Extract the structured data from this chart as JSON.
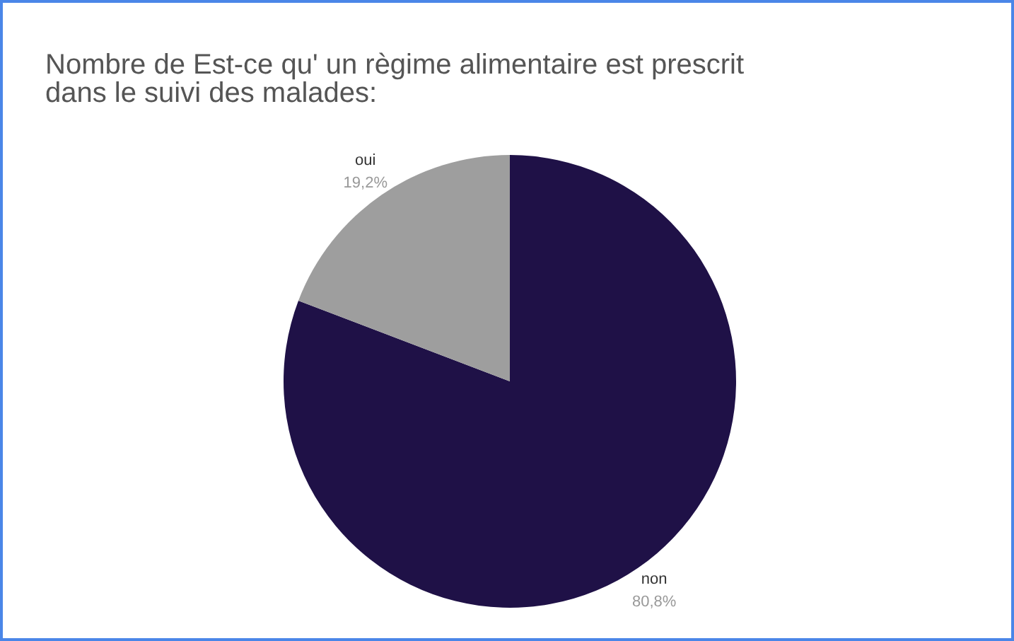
{
  "chart_data": {
    "type": "pie",
    "title": "Nombre de Est-ce qu' un règime alimentaire est prescrit dans le suivi des malades:",
    "categories": [
      "non",
      "oui"
    ],
    "values": [
      80.8,
      19.2
    ],
    "colors": [
      "#1f1147",
      "#9e9e9e"
    ],
    "value_labels": [
      "80,8%",
      "19,2%"
    ]
  }
}
